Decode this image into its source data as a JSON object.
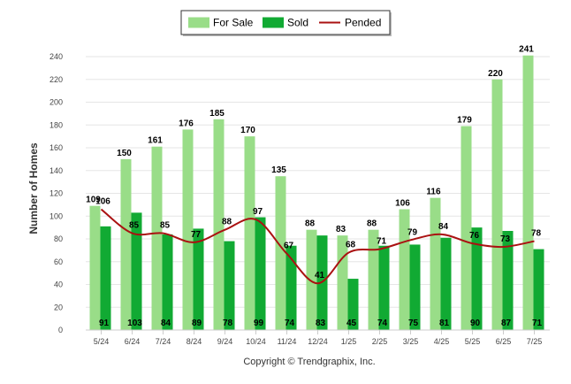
{
  "chart_data": {
    "type": "bar",
    "categories": [
      "5/24",
      "6/24",
      "7/24",
      "8/24",
      "9/24",
      "10/24",
      "11/24",
      "12/24",
      "1/25",
      "2/25",
      "3/25",
      "4/25",
      "5/25",
      "6/25",
      "7/25"
    ],
    "series": [
      {
        "name": "For Sale",
        "type": "bar",
        "color": "#99dd88",
        "values": [
          109,
          150,
          161,
          176,
          185,
          170,
          135,
          88,
          83,
          88,
          106,
          116,
          179,
          220,
          241
        ]
      },
      {
        "name": "Sold",
        "type": "bar",
        "color": "#11aa33",
        "values": [
          91,
          103,
          84,
          89,
          78,
          99,
          74,
          83,
          45,
          74,
          75,
          81,
          90,
          87,
          71
        ]
      },
      {
        "name": "Pended",
        "type": "line",
        "color": "#aa1111",
        "values": [
          106,
          85,
          85,
          77,
          88,
          97,
          67,
          41,
          68,
          71,
          79,
          84,
          76,
          73,
          78
        ]
      }
    ],
    "ylabel": "Number of Homes",
    "ylim": [
      0,
      240
    ],
    "yticks": [
      0,
      20,
      40,
      60,
      80,
      100,
      120,
      140,
      160,
      180,
      200,
      220,
      240
    ],
    "grid": true,
    "legend_position": "top-center",
    "credit": "Copyright © Trendgraphix, Inc."
  }
}
